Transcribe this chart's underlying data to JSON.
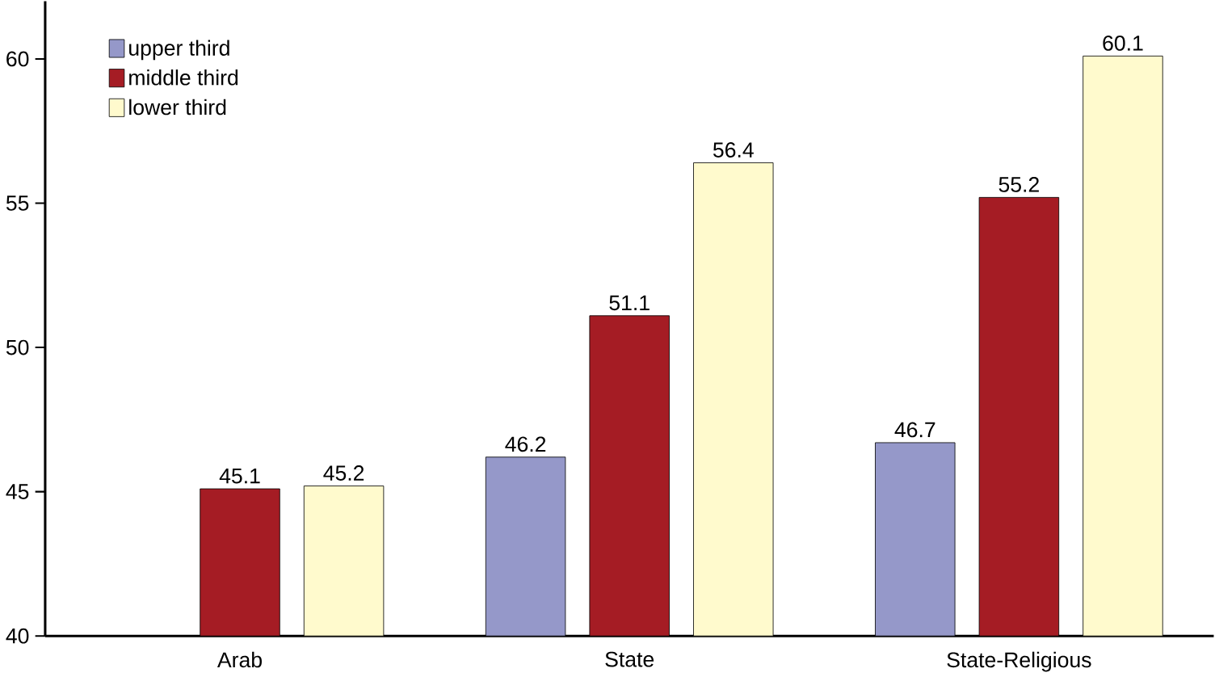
{
  "chart_data": {
    "type": "bar",
    "categories": [
      "Arab",
      "State",
      "State-Religious"
    ],
    "series": [
      {
        "name": "upper third",
        "color": "#9598c9",
        "values": [
          null,
          46.2,
          46.7
        ]
      },
      {
        "name": "middle third",
        "color": "#a51c24",
        "values": [
          45.1,
          51.1,
          55.2
        ]
      },
      {
        "name": "lower third",
        "color": "#fffacd",
        "values": [
          45.2,
          56.4,
          60.1
        ]
      }
    ],
    "ylim": [
      40,
      62
    ],
    "yticks": [
      40,
      45,
      50,
      55,
      60
    ],
    "data_labels": true,
    "legend": "top left",
    "grid": false
  }
}
